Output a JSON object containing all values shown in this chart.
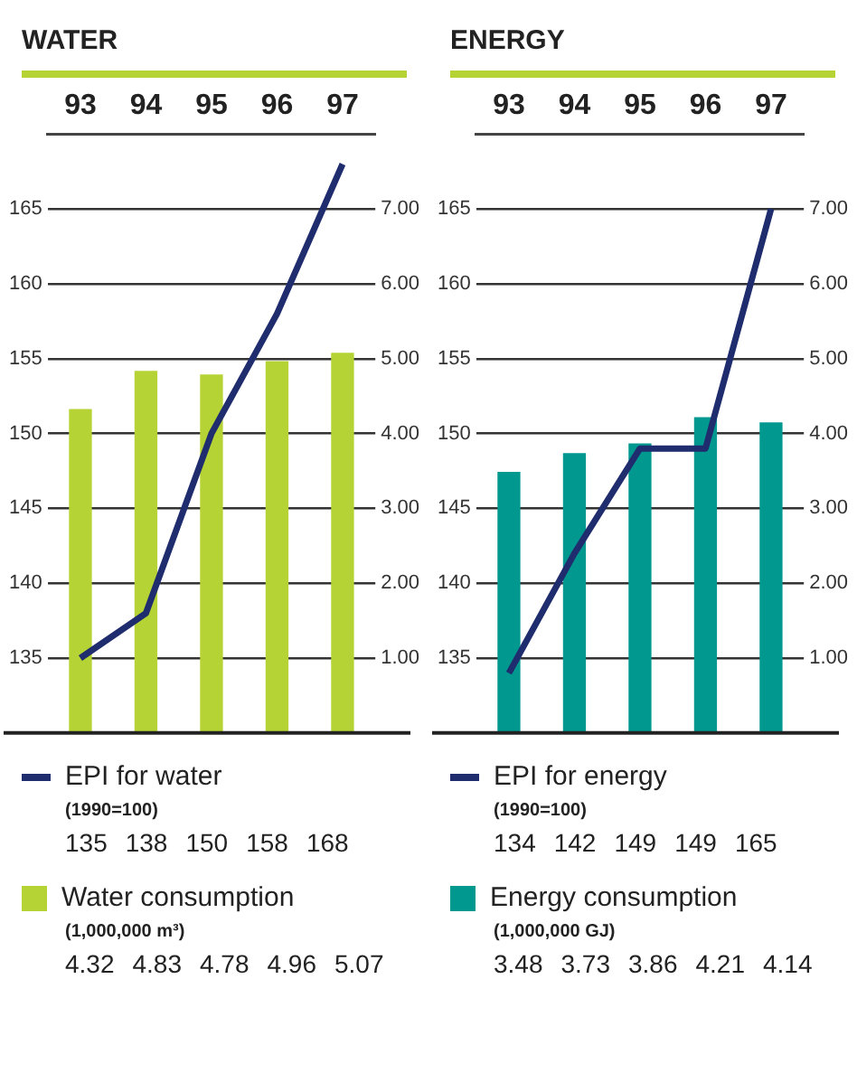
{
  "chart_data": [
    {
      "type": "bar",
      "title": "WATER",
      "categories": [
        "93",
        "94",
        "95",
        "96",
        "97"
      ],
      "series": [
        {
          "name": "EPI for water",
          "type": "line",
          "axis": "y",
          "color": "#1f2d6e",
          "values": [
            135,
            138,
            150,
            158,
            168
          ]
        },
        {
          "name": "Water consumption",
          "axis": "y2",
          "color": "#b5d334",
          "values": [
            4.32,
            4.83,
            4.78,
            4.96,
            5.07
          ]
        }
      ],
      "annotations": [
        "(1990=100)",
        "(1,000,000 m³)"
      ],
      "ylim": [
        130,
        170
      ],
      "yticks": [
        135,
        140,
        145,
        150,
        155,
        160,
        165
      ],
      "y2lim": [
        0,
        8
      ],
      "y2ticks": [
        {
          "value": 1,
          "label": "1.00"
        },
        {
          "value": 2,
          "label": "2.00"
        },
        {
          "value": 3,
          "label": "3.00"
        },
        {
          "value": 4,
          "label": "4.00"
        },
        {
          "value": 5,
          "label": "5.00"
        },
        {
          "value": 6,
          "label": "6.00"
        },
        {
          "value": 7,
          "label": "7.00"
        }
      ],
      "grid": "y",
      "legend": "bottom",
      "data_labels": true,
      "line_style": "solid"
    },
    {
      "type": "bar",
      "title": "ENERGY",
      "categories": [
        "93",
        "94",
        "95",
        "96",
        "97"
      ],
      "series": [
        {
          "name": "EPI for energy",
          "type": "line",
          "axis": "y",
          "color": "#1f2d6e",
          "values": [
            134,
            142,
            149,
            149,
            165
          ]
        },
        {
          "name": "Energy consumption",
          "axis": "y2",
          "color": "#00988f",
          "values": [
            3.48,
            3.73,
            3.86,
            4.21,
            4.14
          ]
        }
      ],
      "annotations": [
        "(1990=100)",
        "(1,000,000 GJ)"
      ],
      "ylim": [
        130,
        170
      ],
      "yticks": [
        135,
        140,
        145,
        150,
        155,
        160,
        165
      ],
      "y2lim": [
        0,
        8
      ],
      "y2ticks": [
        {
          "value": 1,
          "label": "1.00"
        },
        {
          "value": 2,
          "label": "2.00"
        },
        {
          "value": 3,
          "label": "3.00"
        },
        {
          "value": 4,
          "label": "4.00"
        },
        {
          "value": 5,
          "label": "5.00"
        },
        {
          "value": 6,
          "label": "6.00"
        },
        {
          "value": 7,
          "label": "7.00"
        }
      ],
      "grid": "y",
      "legend": "bottom",
      "data_labels": true,
      "line_style": "solid"
    }
  ]
}
